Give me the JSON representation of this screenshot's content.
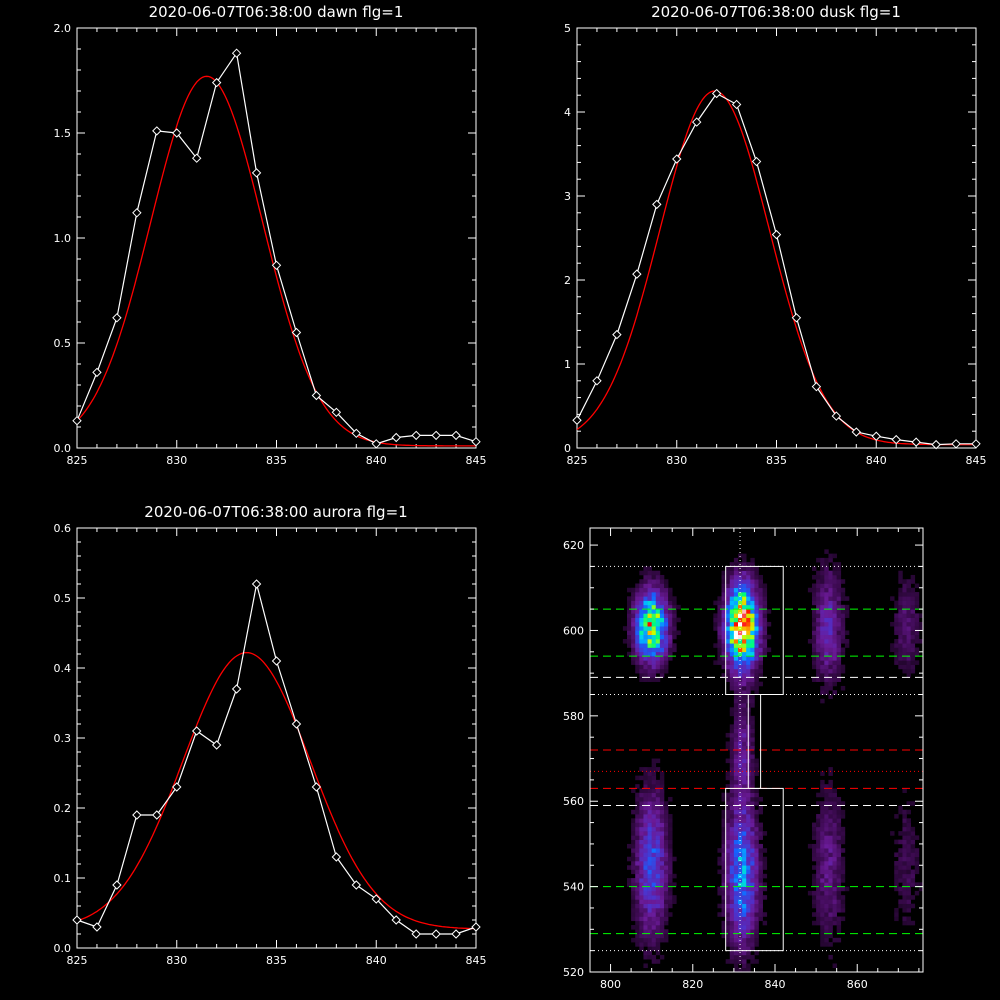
{
  "colors": {
    "background": "#000000",
    "axes": "#ffffff",
    "observed": "#ffffff",
    "fit": "#ff0000",
    "guide_green": "#00ff00",
    "guide_red": "#ff0000",
    "guide_white": "#ffffff"
  },
  "chart_data": [
    {
      "type": "line",
      "title": "2020-06-07T06:38:00 dawn flg=1",
      "xlim": [
        825,
        845
      ],
      "ylim": [
        0,
        2.0
      ],
      "xticks": [
        "825",
        "830",
        "835",
        "840",
        "845"
      ],
      "yticks": [
        "0.0",
        "0.5",
        "1.0",
        "1.5",
        "2.0"
      ],
      "observed": {
        "marker": "diamond",
        "x": [
          825,
          826,
          827,
          828,
          829,
          830,
          831,
          832,
          833,
          834,
          835,
          836,
          837,
          838,
          839,
          840,
          841,
          842,
          843,
          844,
          845
        ],
        "y": [
          0.13,
          0.36,
          0.62,
          1.12,
          1.51,
          1.5,
          1.38,
          1.74,
          1.88,
          1.31,
          0.87,
          0.55,
          0.25,
          0.17,
          0.07,
          0.02,
          0.05,
          0.06,
          0.06,
          0.06,
          0.03
        ]
      },
      "fit": {
        "type": "gaussian",
        "amplitude": 1.76,
        "center": 831.5,
        "sigma": 2.8,
        "offset": 0.01
      }
    },
    {
      "type": "line",
      "title": "2020-06-07T06:38:00 dusk flg=1",
      "xlim": [
        825,
        845
      ],
      "ylim": [
        0,
        5
      ],
      "xticks": [
        "825",
        "830",
        "835",
        "840",
        "845"
      ],
      "yticks": [
        "0",
        "1",
        "2",
        "3",
        "4",
        "5"
      ],
      "observed": {
        "marker": "diamond",
        "x": [
          825,
          826,
          827,
          828,
          829,
          830,
          831,
          832,
          833,
          834,
          835,
          836,
          837,
          838,
          839,
          840,
          841,
          842,
          843,
          844,
          845
        ],
        "y": [
          0.33,
          0.8,
          1.35,
          2.07,
          2.9,
          3.44,
          3.88,
          4.22,
          4.09,
          3.41,
          2.54,
          1.55,
          0.73,
          0.38,
          0.19,
          0.14,
          0.1,
          0.07,
          0.04,
          0.05,
          0.05
        ]
      },
      "fit": {
        "type": "gaussian",
        "amplitude": 4.21,
        "center": 831.9,
        "sigma": 2.75,
        "offset": 0.04
      }
    },
    {
      "type": "line",
      "title": "2020-06-07T06:38:00 aurora flg=1",
      "xlim": [
        825,
        845
      ],
      "ylim": [
        0,
        0.6
      ],
      "xticks": [
        "825",
        "830",
        "835",
        "840",
        "845"
      ],
      "yticks": [
        "0.0",
        "0.1",
        "0.2",
        "0.3",
        "0.4",
        "0.5",
        "0.6"
      ],
      "observed": {
        "marker": "diamond",
        "x": [
          825,
          826,
          827,
          828,
          829,
          830,
          831,
          832,
          833,
          834,
          835,
          836,
          837,
          838,
          839,
          840,
          841,
          842,
          843,
          844,
          845
        ],
        "y": [
          0.04,
          0.03,
          0.09,
          0.19,
          0.19,
          0.23,
          0.31,
          0.29,
          0.37,
          0.52,
          0.41,
          0.32,
          0.23,
          0.13,
          0.09,
          0.07,
          0.04,
          0.02,
          0.02,
          0.02,
          0.03
        ]
      },
      "fit": {
        "type": "gaussian",
        "amplitude": 0.395,
        "center": 833.5,
        "sigma": 3.2,
        "offset": 0.027
      }
    },
    {
      "type": "heatmap",
      "title": "",
      "xlim": [
        795,
        876
      ],
      "ylim": [
        520,
        624
      ],
      "xticks": [
        800,
        820,
        840,
        860
      ],
      "yticks": [
        520,
        540,
        560,
        580,
        600,
        620
      ],
      "colorscale": [
        "#000000",
        "#3c0a50",
        "#6a1a96",
        "#5030c8",
        "#1464ff",
        "#00c8ff",
        "#00ff78",
        "#c8ff00",
        "#ffb400",
        "#ff0000",
        "#ffffff"
      ],
      "emission_sources": [
        {
          "x": 810,
          "y": 601,
          "sigma_x": 2.6,
          "sigma_y": 5.5,
          "peak": 0.72
        },
        {
          "x": 810,
          "y": 545,
          "sigma_x": 2.6,
          "sigma_y": 11,
          "peak": 0.33
        },
        {
          "x": 832,
          "y": 601,
          "sigma_x": 2.6,
          "sigma_y": 6.5,
          "peak": 0.95
        },
        {
          "x": 832,
          "y": 543,
          "sigma_x": 2.6,
          "sigma_y": 11,
          "peak": 0.42
        },
        {
          "x": 832,
          "y": 572,
          "sigma_x": 1.8,
          "sigma_y": 8,
          "peak": 0.18
        },
        {
          "x": 853,
          "y": 601,
          "sigma_x": 2.4,
          "sigma_y": 9,
          "peak": 0.22
        },
        {
          "x": 853,
          "y": 545,
          "sigma_x": 2.4,
          "sigma_y": 12,
          "peak": 0.16
        },
        {
          "x": 872,
          "y": 601,
          "sigma_x": 2.2,
          "sigma_y": 8,
          "peak": 0.12
        },
        {
          "x": 872,
          "y": 545,
          "sigma_x": 2.2,
          "sigma_y": 10,
          "peak": 0.09
        }
      ],
      "vertical_guide_x": 831.5,
      "boxes": [
        {
          "x": [
            828,
            842
          ],
          "y": [
            585,
            615
          ]
        },
        {
          "x": [
            833.5,
            836.5
          ],
          "y": [
            563,
            585
          ]
        },
        {
          "x": [
            828,
            842
          ],
          "y": [
            525,
            563
          ]
        }
      ],
      "horizontal_guides": [
        {
          "y": 615,
          "color": "white",
          "style": "dotted"
        },
        {
          "y": 605,
          "color": "green",
          "style": "dashed"
        },
        {
          "y": 594,
          "color": "green",
          "style": "dashed"
        },
        {
          "y": 589,
          "color": "white",
          "style": "dashed"
        },
        {
          "y": 585,
          "color": "white",
          "style": "dotted"
        },
        {
          "y": 572,
          "color": "red",
          "style": "dashed"
        },
        {
          "y": 567,
          "color": "red",
          "style": "dotted"
        },
        {
          "y": 563,
          "color": "red",
          "style": "dashed"
        },
        {
          "y": 559,
          "color": "white",
          "style": "dashed"
        },
        {
          "y": 540,
          "color": "green",
          "style": "dashed"
        },
        {
          "y": 529,
          "color": "green",
          "style": "dashed"
        },
        {
          "y": 525,
          "color": "white",
          "style": "dotted"
        }
      ]
    }
  ]
}
